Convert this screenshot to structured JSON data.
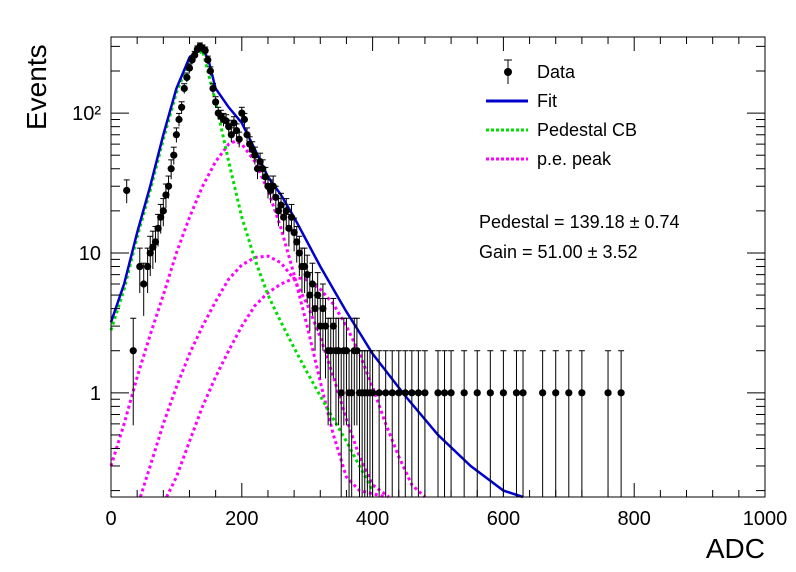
{
  "chart_data": {
    "type": "scatter",
    "xlabel": "ADC",
    "ylabel": "Events",
    "xlim": [
      0,
      1000
    ],
    "ylim": [
      0.18,
      350
    ],
    "yscale": "log",
    "grid": false,
    "legend_position": "top-right",
    "x_ticks": [
      0,
      200,
      400,
      600,
      800,
      1000
    ],
    "x_tick_labels": [
      "0",
      "200",
      "400",
      "600",
      "800",
      "1000"
    ],
    "y_ticks": [
      1,
      10,
      100
    ],
    "y_tick_labels": [
      "1",
      "10",
      "10²"
    ],
    "legend": [
      {
        "label": "Data",
        "key": "data",
        "color": "#000000",
        "style": "marker"
      },
      {
        "label": "Fit",
        "key": "fit",
        "color": "#0000cc",
        "style": "solid"
      },
      {
        "label": "Pedestal CB",
        "key": "pedestal",
        "color": "#00dd00",
        "style": "dotted"
      },
      {
        "label": "p.e. peak",
        "key": "pe",
        "color": "#ff00ff",
        "style": "dotted"
      }
    ],
    "annotations": [
      {
        "key": "pedestal_value",
        "text": "Pedestal = 139.18 ± 0.74"
      },
      {
        "key": "gain_value",
        "text": "Gain = 51.00 ± 3.52"
      }
    ],
    "fit_params": {
      "pedestal_mean": 139.18,
      "pedestal_err": 0.74,
      "gain": 51.0,
      "gain_err": 3.52
    },
    "series": [
      {
        "name": "Data",
        "kind": "points",
        "x": [
          24,
          34,
          44,
          50,
          56,
          60,
          64,
          68,
          72,
          76,
          80,
          84,
          88,
          92,
          96,
          100,
          104,
          108,
          112,
          116,
          120,
          124,
          128,
          132,
          136,
          140,
          144,
          148,
          152,
          156,
          160,
          164,
          168,
          172,
          176,
          180,
          184,
          188,
          192,
          196,
          200,
          204,
          208,
          212,
          216,
          220,
          224,
          228,
          232,
          236,
          240,
          244,
          248,
          252,
          256,
          260,
          264,
          268,
          272,
          276,
          280,
          284,
          288,
          292,
          296,
          300,
          304,
          308,
          312,
          316,
          320,
          324,
          328,
          332,
          336,
          340,
          344,
          348,
          352,
          356,
          360,
          364,
          368,
          372,
          376,
          380,
          384,
          388,
          392,
          396,
          400,
          410,
          420,
          430,
          440,
          450,
          460,
          470,
          480,
          500,
          510,
          520,
          540,
          560,
          580,
          600,
          620,
          630,
          660,
          680,
          700,
          720,
          760,
          780
        ],
        "y": [
          28,
          2,
          8,
          6,
          8,
          10,
          11,
          12,
          15,
          18,
          20,
          26,
          30,
          40,
          50,
          70,
          90,
          110,
          150,
          180,
          210,
          240,
          260,
          285,
          300,
          290,
          280,
          240,
          200,
          150,
          120,
          100,
          95,
          90,
          88,
          80,
          70,
          85,
          75,
          65,
          100,
          90,
          70,
          60,
          55,
          50,
          40,
          45,
          40,
          35,
          30,
          28,
          30,
          25,
          20,
          22,
          18,
          20,
          15,
          18,
          14,
          12,
          10,
          8,
          8,
          7,
          5,
          6,
          4,
          5,
          3,
          4,
          3,
          2,
          2,
          3,
          2,
          2,
          1,
          2,
          2,
          1,
          1,
          2,
          2,
          1,
          1,
          1,
          1,
          1,
          1,
          1,
          1,
          1,
          1,
          1,
          1,
          1,
          1,
          1,
          1,
          1,
          1,
          1,
          1,
          1,
          1,
          1,
          1,
          1,
          1,
          1,
          1,
          1
        ]
      },
      {
        "name": "Fit",
        "kind": "curve",
        "x": [
          0,
          20,
          40,
          60,
          80,
          100,
          120,
          140,
          150,
          160,
          180,
          200,
          220,
          240,
          260,
          280,
          300,
          320,
          340,
          360,
          380,
          400,
          450,
          500,
          550,
          600,
          630
        ],
        "y": [
          3.2,
          6,
          14,
          30,
          70,
          150,
          250,
          300,
          230,
          150,
          110,
          85,
          55,
          35,
          26,
          18,
          12,
          8,
          5.5,
          3.8,
          2.7,
          1.9,
          0.95,
          0.5,
          0.3,
          0.2,
          0.18
        ]
      },
      {
        "name": "Pedestal CB",
        "kind": "curve",
        "x": [
          0,
          20,
          40,
          60,
          80,
          100,
          120,
          140,
          160,
          180,
          200,
          220,
          240,
          260,
          280,
          300,
          320,
          340,
          360,
          380,
          400
        ],
        "y": [
          2.8,
          5.5,
          13,
          28,
          65,
          140,
          240,
          280,
          120,
          45,
          18,
          9,
          5,
          3.2,
          2.1,
          1.4,
          0.95,
          0.65,
          0.45,
          0.3,
          0.2
        ]
      },
      {
        "name": "p.e. peak 1",
        "kind": "curve",
        "x": [
          0,
          20,
          40,
          60,
          80,
          100,
          120,
          140,
          160,
          180,
          190,
          200,
          220,
          240,
          260,
          280,
          300,
          320,
          340,
          360,
          380,
          400,
          420
        ],
        "y": [
          0.3,
          0.6,
          1.3,
          2.6,
          5,
          10,
          18,
          30,
          45,
          60,
          63,
          60,
          45,
          28,
          15,
          7,
          3,
          1.2,
          0.5,
          0.25,
          0.2,
          0.19,
          0.18
        ]
      },
      {
        "name": "p.e. peak 2",
        "kind": "curve",
        "x": [
          45,
          60,
          80,
          100,
          120,
          140,
          160,
          180,
          200,
          220,
          240,
          260,
          280,
          300,
          320,
          340,
          360,
          380,
          400,
          425
        ],
        "y": [
          0.18,
          0.3,
          0.6,
          1.1,
          1.9,
          3,
          4.5,
          6.5,
          8.2,
          9.3,
          9.5,
          8.5,
          6.5,
          4.3,
          2.5,
          1.3,
          0.65,
          0.35,
          0.22,
          0.18
        ]
      },
      {
        "name": "p.e. peak 3",
        "kind": "curve",
        "x": [
          85,
          100,
          120,
          140,
          160,
          180,
          200,
          220,
          240,
          260,
          280,
          290,
          300,
          320,
          340,
          360,
          380,
          400,
          420,
          440,
          460,
          480
        ],
        "y": [
          0.18,
          0.25,
          0.45,
          0.8,
          1.3,
          2,
          3,
          4.2,
          5.2,
          6,
          6.6,
          6.6,
          6.4,
          5.5,
          4.3,
          3,
          1.9,
          1.1,
          0.6,
          0.35,
          0.22,
          0.18
        ]
      }
    ]
  }
}
